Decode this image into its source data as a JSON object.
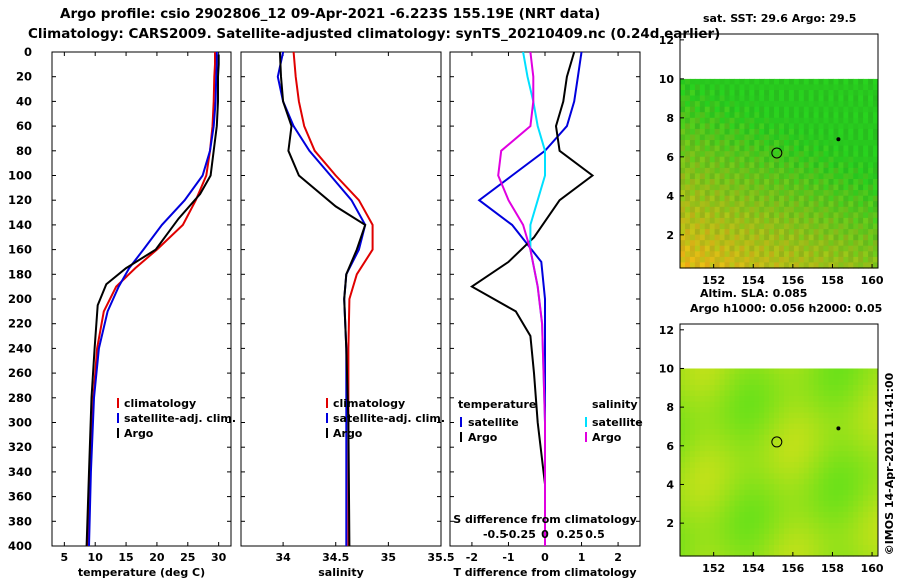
{
  "header": {
    "title1": "Argo profile:  csio 2902806_12 09-Apr-2021 -6.223S 155.19E (NRT data)",
    "title2": "Climatology: CARS2009. Satellite-adjusted climatology: synTS_20210409.nc (0.24d earlier)"
  },
  "depth_axis": {
    "ticks": [
      0,
      20,
      40,
      60,
      80,
      100,
      120,
      140,
      160,
      180,
      200,
      220,
      240,
      260,
      280,
      300,
      320,
      340,
      360,
      380,
      400
    ],
    "range": [
      0,
      400
    ]
  },
  "colors": {
    "climatology": "#e00000",
    "satellite": "#0000dd",
    "argo": "#000000",
    "sat_salinity": "#00e0ff",
    "clim_salinity_diff": "#e000e0"
  },
  "chart_data": [
    {
      "id": "temperature",
      "type": "line",
      "xlabel": "temperature (deg C)",
      "xlim": [
        3,
        32
      ],
      "xticks": [
        5,
        10,
        15,
        20,
        25,
        30
      ],
      "legend": [
        "climatology",
        "satellite-adj. clim.",
        "Argo"
      ],
      "series": [
        {
          "name": "climatology",
          "color": "#e00000",
          "points": [
            [
              29.4,
              0
            ],
            [
              29.4,
              10
            ],
            [
              29.3,
              20
            ],
            [
              29.2,
              40
            ],
            [
              29.0,
              60
            ],
            [
              28.6,
              80
            ],
            [
              28.0,
              100
            ],
            [
              26.3,
              120
            ],
            [
              24.2,
              140
            ],
            [
              20.0,
              160
            ],
            [
              16.5,
              175
            ],
            [
              13.4,
              190
            ],
            [
              11.4,
              210
            ],
            [
              10.3,
              240
            ],
            [
              9.7,
              280
            ],
            [
              9.2,
              340
            ],
            [
              8.7,
              400
            ]
          ]
        },
        {
          "name": "satellite-adj. clim.",
          "color": "#0000dd",
          "points": [
            [
              29.7,
              0
            ],
            [
              29.7,
              10
            ],
            [
              29.6,
              20
            ],
            [
              29.5,
              40
            ],
            [
              29.2,
              60
            ],
            [
              28.6,
              80
            ],
            [
              27.4,
              100
            ],
            [
              24.5,
              120
            ],
            [
              20.8,
              140
            ],
            [
              17.8,
              160
            ],
            [
              15.5,
              175
            ],
            [
              13.8,
              190
            ],
            [
              12.0,
              210
            ],
            [
              10.6,
              240
            ],
            [
              9.8,
              280
            ],
            [
              9.3,
              340
            ],
            [
              9.0,
              400
            ]
          ]
        },
        {
          "name": "Argo",
          "color": "#000000",
          "points": [
            [
              30.0,
              2
            ],
            [
              30.0,
              10
            ],
            [
              29.9,
              20
            ],
            [
              29.9,
              40
            ],
            [
              29.7,
              60
            ],
            [
              29.2,
              80
            ],
            [
              28.7,
              100
            ],
            [
              27.0,
              115
            ],
            [
              23.5,
              135
            ],
            [
              19.8,
              160
            ],
            [
              15.0,
              175
            ],
            [
              11.8,
              188
            ],
            [
              10.4,
              205
            ],
            [
              9.9,
              240
            ],
            [
              9.4,
              280
            ],
            [
              9.0,
              340
            ],
            [
              8.6,
              400
            ]
          ]
        }
      ]
    },
    {
      "id": "salinity",
      "type": "line",
      "xlabel": "salinity",
      "xlim": [
        33.6,
        35.5
      ],
      "xticks": [
        34,
        34.5,
        35,
        35.5
      ],
      "legend": [
        "climatology",
        "satellite-adj. clim.",
        "Argo"
      ],
      "series": [
        {
          "name": "climatology",
          "color": "#e00000",
          "points": [
            [
              34.1,
              0
            ],
            [
              34.12,
              20
            ],
            [
              34.15,
              40
            ],
            [
              34.2,
              60
            ],
            [
              34.3,
              80
            ],
            [
              34.5,
              100
            ],
            [
              34.72,
              120
            ],
            [
              34.85,
              140
            ],
            [
              34.85,
              160
            ],
            [
              34.7,
              180
            ],
            [
              34.63,
              200
            ],
            [
              34.62,
              240
            ],
            [
              34.62,
              300
            ],
            [
              34.62,
              400
            ]
          ]
        },
        {
          "name": "satellite-adj. clim.",
          "color": "#0000dd",
          "points": [
            [
              34.0,
              0
            ],
            [
              33.95,
              20
            ],
            [
              34.0,
              40
            ],
            [
              34.1,
              60
            ],
            [
              34.25,
              80
            ],
            [
              34.45,
              100
            ],
            [
              34.65,
              120
            ],
            [
              34.78,
              140
            ],
            [
              34.72,
              160
            ],
            [
              34.6,
              180
            ],
            [
              34.58,
              200
            ],
            [
              34.6,
              240
            ],
            [
              34.6,
              300
            ],
            [
              34.6,
              400
            ]
          ]
        },
        {
          "name": "Argo",
          "color": "#000000",
          "points": [
            [
              33.97,
              0
            ],
            [
              33.98,
              20
            ],
            [
              34.0,
              40
            ],
            [
              34.08,
              60
            ],
            [
              34.05,
              80
            ],
            [
              34.15,
              100
            ],
            [
              34.5,
              125
            ],
            [
              34.78,
              140
            ],
            [
              34.7,
              160
            ],
            [
              34.6,
              180
            ],
            [
              34.58,
              200
            ],
            [
              34.6,
              240
            ],
            [
              34.62,
              300
            ],
            [
              34.63,
              400
            ]
          ]
        }
      ]
    },
    {
      "id": "difference",
      "type": "line",
      "xlabel": "T difference from climatology",
      "xlabel_top": "S difference from climatology",
      "xlim": [
        -2.6,
        2.6
      ],
      "xticks": [
        -2,
        -1,
        0,
        1,
        2
      ],
      "xticks_top": [
        -0.5,
        -0.25,
        0,
        0.25,
        0.5
      ],
      "legend_left_title": "temperature",
      "legend_right_title": "salinity",
      "legend_left": [
        "satellite",
        "Argo"
      ],
      "legend_right": [
        "satellite",
        "Argo"
      ],
      "series": [
        {
          "name": "T satellite",
          "color": "#0000dd",
          "points": [
            [
              1.0,
              0
            ],
            [
              0.9,
              20
            ],
            [
              0.8,
              40
            ],
            [
              0.6,
              60
            ],
            [
              0.0,
              80
            ],
            [
              -0.9,
              100
            ],
            [
              -1.8,
              120
            ],
            [
              -0.9,
              140
            ],
            [
              -0.1,
              170
            ],
            [
              0.0,
              200
            ],
            [
              0.0,
              300
            ],
            [
              0.0,
              400
            ]
          ]
        },
        {
          "name": "T Argo",
          "color": "#000000",
          "points": [
            [
              0.8,
              0
            ],
            [
              0.6,
              20
            ],
            [
              0.5,
              40
            ],
            [
              0.3,
              60
            ],
            [
              0.4,
              80
            ],
            [
              1.3,
              100
            ],
            [
              0.4,
              120
            ],
            [
              -0.3,
              150
            ],
            [
              -1.0,
              170
            ],
            [
              -2.0,
              190
            ],
            [
              -0.8,
              210
            ],
            [
              -0.4,
              230
            ],
            [
              -0.3,
              260
            ],
            [
              -0.2,
              300
            ],
            [
              0.0,
              350
            ],
            [
              0.0,
              400
            ]
          ]
        },
        {
          "name": "S satellite",
          "color": "#00e0ff",
          "points": [
            [
              -0.15,
              0
            ],
            [
              -0.12,
              20
            ],
            [
              -0.08,
              40
            ],
            [
              -0.05,
              60
            ],
            [
              0.0,
              80
            ],
            [
              0.0,
              100
            ],
            [
              -0.05,
              120
            ],
            [
              -0.1,
              140
            ],
            [
              -0.1,
              160
            ],
            [
              -0.05,
              190
            ],
            [
              -0.02,
              220
            ],
            [
              0.0,
              300
            ],
            [
              0.0,
              400
            ]
          ]
        },
        {
          "name": "S Argo",
          "color": "#e000e0",
          "points": [
            [
              -0.1,
              0
            ],
            [
              -0.08,
              20
            ],
            [
              -0.08,
              40
            ],
            [
              -0.1,
              60
            ],
            [
              -0.3,
              80
            ],
            [
              -0.32,
              100
            ],
            [
              -0.25,
              120
            ],
            [
              -0.15,
              140
            ],
            [
              -0.1,
              160
            ],
            [
              -0.05,
              190
            ],
            [
              -0.02,
              220
            ],
            [
              0.0,
              300
            ],
            [
              0.0,
              400
            ]
          ]
        }
      ]
    }
  ],
  "maps": {
    "top": {
      "title": "sat. SST: 29.6 Argo: 29.5",
      "yticks": [
        2,
        4,
        6,
        8,
        10,
        12
      ],
      "xticks": [
        152,
        154,
        156,
        158,
        160
      ],
      "palette": "sst"
    },
    "top_caption": "Altim. SLA: 0.085",
    "bottom_title": "Argo h1000: 0.056 h2000: 0.05",
    "bottom": {
      "yticks": [
        2,
        4,
        6,
        8,
        10,
        12
      ],
      "xticks": [
        152,
        154,
        156,
        158,
        160
      ],
      "palette": "sla"
    },
    "marker": {
      "lon": 155.19,
      "lat": 6.2
    }
  },
  "credit": "©IMOS 14-Apr-2021 11:41:00"
}
